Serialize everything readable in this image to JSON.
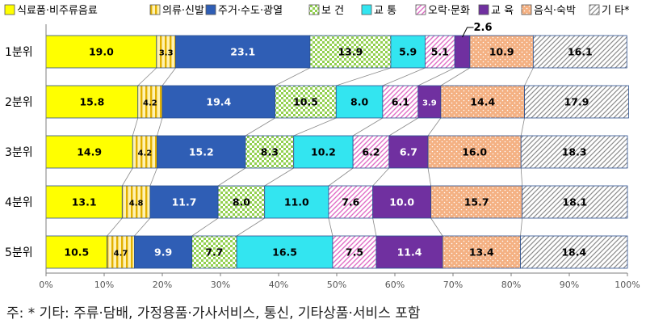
{
  "chart_data": {
    "type": "bar",
    "orientation": "horizontal",
    "stacked": true,
    "categories": [
      "1분위",
      "2분위",
      "3분위",
      "4분위",
      "5분위"
    ],
    "series": [
      {
        "name": "식료품·비주류음료",
        "color": "#ffff00",
        "pattern": "solid",
        "values": [
          19.0,
          15.8,
          14.9,
          13.1,
          10.5
        ]
      },
      {
        "name": "의류·신발",
        "color": "#ffd966",
        "pattern": "vertical-lines",
        "values": [
          3.3,
          4.2,
          4.2,
          4.8,
          4.7
        ]
      },
      {
        "name": "주거·수도·광열",
        "color": "#2f5eb5",
        "pattern": "solid",
        "values": [
          23.1,
          19.4,
          15.2,
          11.7,
          9.9
        ]
      },
      {
        "name": "보 건",
        "color": "#92d050",
        "pattern": "checker",
        "values": [
          13.9,
          10.5,
          8.3,
          8.0,
          7.7
        ]
      },
      {
        "name": "교 통",
        "color": "#33e5f0",
        "pattern": "solid",
        "values": [
          5.9,
          8.0,
          10.2,
          11.0,
          16.5
        ]
      },
      {
        "name": "오락·문화",
        "color": "#e06ec6",
        "pattern": "diagonal-lines",
        "values": [
          5.1,
          6.1,
          6.2,
          7.6,
          7.5
        ]
      },
      {
        "name": "교 육",
        "color": "#7030a0",
        "pattern": "solid",
        "values": [
          2.6,
          3.9,
          6.7,
          10.0,
          11.4
        ]
      },
      {
        "name": "음식·숙박",
        "color": "#f4b183",
        "pattern": "dots",
        "values": [
          10.9,
          14.4,
          16.0,
          15.7,
          13.4
        ]
      },
      {
        "name": "기 타*",
        "color": "#bfbfbf",
        "pattern": "diagonal-hatch",
        "values": [
          16.1,
          17.9,
          18.3,
          18.1,
          18.4
        ]
      }
    ],
    "xlim": [
      0,
      100
    ],
    "xticks": [
      "0%",
      "10%",
      "20%",
      "30%",
      "40%",
      "50%",
      "60%",
      "70%",
      "80%",
      "90%",
      "100%"
    ],
    "legend_position": "top",
    "grid": false,
    "connector_lines": true,
    "callouts": [
      {
        "category": "1분위",
        "series": "교 육",
        "label": "2.6"
      }
    ]
  },
  "footnote": "주: * 기타: 주류·담배, 가정용품·가사서비스, 통신, 기타상품·서비스 포함"
}
